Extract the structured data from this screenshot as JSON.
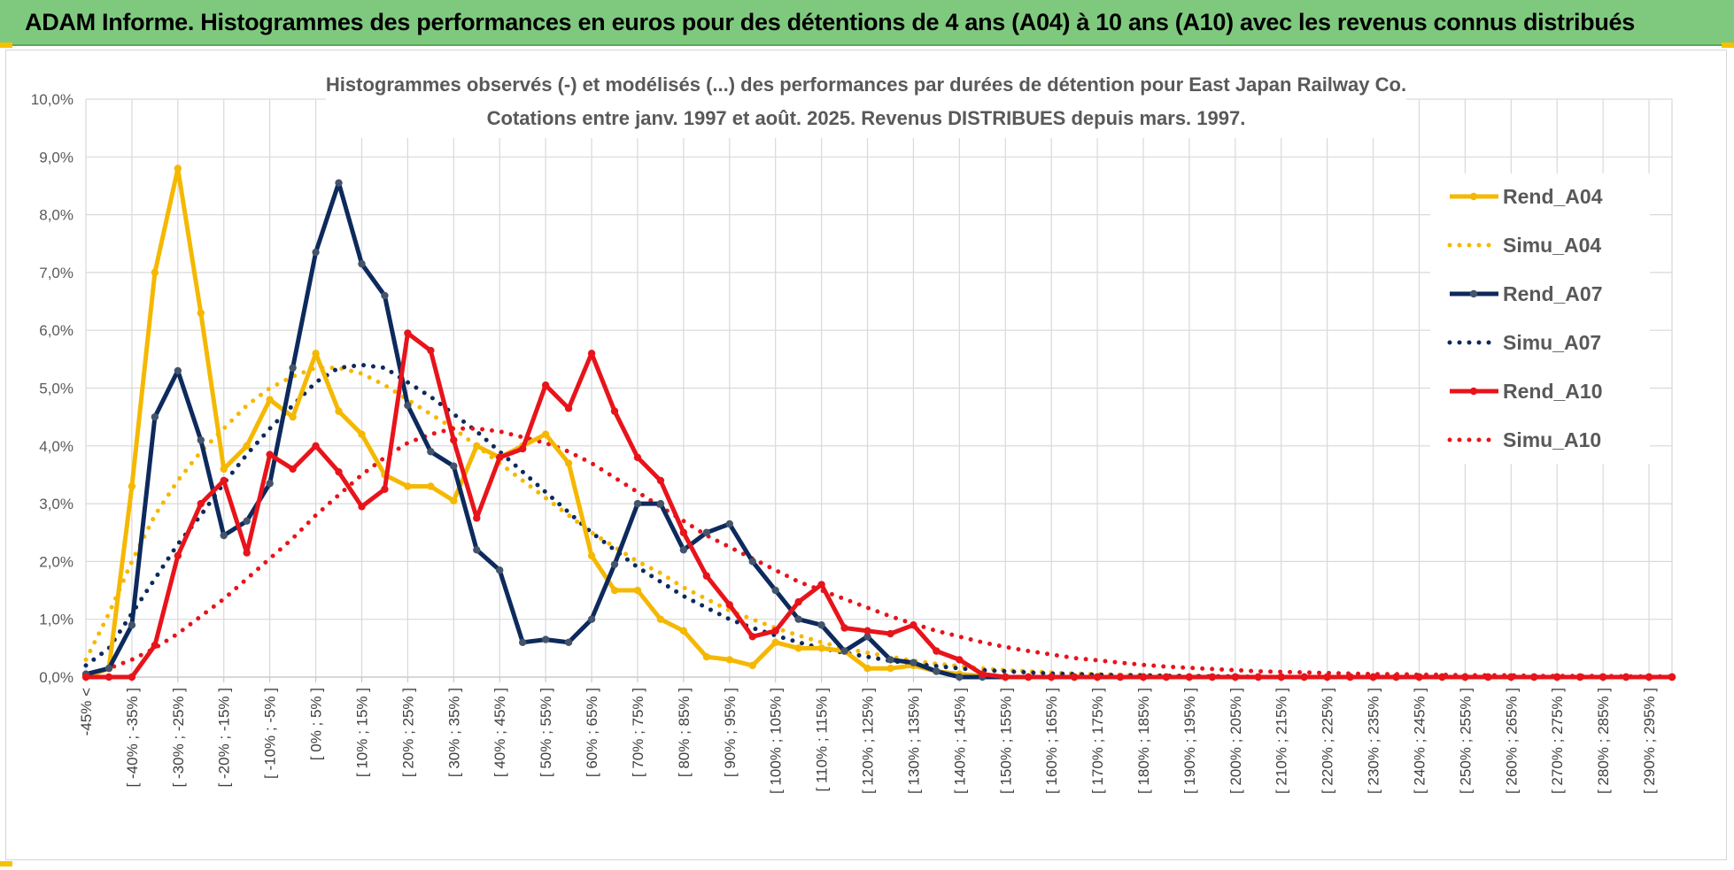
{
  "banner": {
    "title": "ADAM Informe. Histogrammes des performances en euros pour des détentions de 4 ans (A04) à 10 ans (A10) avec les revenus connus distribués"
  },
  "chart_data": {
    "type": "line",
    "title": "Histogrammes observés (-) et modélisés (...) des performances par durées de détention pour East Japan Railway Co.",
    "subtitle": "Cotations entre janv. 1997 et août. 2025. Revenus DISTRIBUES depuis mars. 1997.",
    "xlabel": "",
    "ylabel": "",
    "ylim": [
      0,
      10
    ],
    "grid": true,
    "legend_position": "right",
    "y_ticks": [
      "0,0%",
      "1,0%",
      "2,0%",
      "3,0%",
      "4,0%",
      "5,0%",
      "6,0%",
      "7,0%",
      "8,0%",
      "9,0%",
      "10,0%"
    ],
    "x_labels": [
      "-45% <",
      "[ -40% ; -35% ]",
      "[ -30% ; -25% ]",
      "[ -20% ; -15% ]",
      "[ -10% ; -5% ]",
      "[ 0% ; 5% ]",
      "[ 10% ; 15% ]",
      "[ 20% ; 25% ]",
      "[ 30% ; 35% ]",
      "[ 40% ; 45% ]",
      "[ 50% ; 55% ]",
      "[ 60% ; 65% ]",
      "[ 70% ; 75% ]",
      "[ 80% ; 85% ]",
      "[ 90% ; 95% ]",
      "[ 100% ; 105% ]",
      "[ 110% ; 115% ]",
      "[ 120% ; 125% ]",
      "[ 130% ; 135% ]",
      "[ 140% ; 145% ]",
      "[ 150% ; 155% ]",
      "[ 160% ; 165% ]",
      "[ 170% ; 175% ]",
      "[ 180% ; 185% ]",
      "[ 190% ; 195% ]",
      "[ 200% ; 205% ]",
      "[ 210% ; 215% ]",
      "[ 220% ; 225% ]",
      "[ 230% ; 235% ]",
      "[ 240% ; 245% ]",
      "[ 250% ; 255% ]",
      "[ 260% ; 265% ]",
      "[ 270% ; 275% ]",
      "[ 280% ; 285% ]",
      "[ 290% ; 295% ]"
    ],
    "series": [
      {
        "name": "Rend_A04",
        "style": "solid",
        "color": "#f5b800",
        "values": [
          0.0,
          0.15,
          3.3,
          7.0,
          8.8,
          6.3,
          3.6,
          4.0,
          4.8,
          4.5,
          5.6,
          4.6,
          4.2,
          3.5,
          3.3,
          3.3,
          3.05,
          4.0,
          3.8,
          4.0,
          4.2,
          3.7,
          2.1,
          1.5,
          1.5,
          1.0,
          0.8,
          0.35,
          0.3,
          0.2,
          0.6,
          0.5,
          0.5,
          0.45,
          0.15,
          0.15,
          0.2,
          0.1,
          0.05,
          0.02,
          0.0,
          0.0,
          0.0,
          0.0,
          0.0,
          0.0,
          0.0,
          0.0,
          0.0,
          0.0,
          0.0,
          0.0,
          0.0,
          0.0,
          0.0,
          0.0,
          0.0,
          0.0,
          0.0,
          0.0,
          0.0,
          0.0,
          0.0,
          0.0,
          0.0,
          0.0,
          0.0,
          0.0,
          0.0,
          0.0
        ]
      },
      {
        "name": "Simu_A04",
        "style": "dotted",
        "color": "#f5b800",
        "values": [
          0.3,
          1.1,
          2.0,
          2.8,
          3.4,
          3.9,
          4.3,
          4.7,
          5.0,
          5.2,
          5.35,
          5.35,
          5.25,
          5.05,
          4.8,
          4.55,
          4.3,
          4.0,
          3.7,
          3.4,
          3.1,
          2.8,
          2.5,
          2.25,
          2.0,
          1.8,
          1.55,
          1.35,
          1.15,
          1.0,
          0.85,
          0.72,
          0.6,
          0.5,
          0.42,
          0.35,
          0.28,
          0.23,
          0.19,
          0.15,
          0.12,
          0.1,
          0.08,
          0.06,
          0.05,
          0.04,
          0.03,
          0.02,
          0.02,
          0.01,
          0.01,
          0.0,
          0.0,
          0.0,
          0.0,
          0.0,
          0.0,
          0.0,
          0.0,
          0.0,
          0.0,
          0.0,
          0.0,
          0.0,
          0.0,
          0.0,
          0.0,
          0.0,
          0.0,
          0.0
        ]
      },
      {
        "name": "Rend_A07",
        "style": "solid",
        "color": "#0d2a5c",
        "values": [
          0.05,
          0.15,
          0.9,
          4.5,
          5.3,
          4.1,
          2.45,
          2.7,
          3.35,
          5.35,
          7.35,
          8.55,
          7.15,
          6.6,
          4.7,
          3.9,
          3.65,
          2.2,
          1.85,
          0.6,
          0.65,
          0.6,
          1.0,
          1.95,
          3.0,
          3.0,
          2.2,
          2.5,
          2.65,
          2.0,
          1.5,
          1.0,
          0.9,
          0.45,
          0.7,
          0.3,
          0.25,
          0.1,
          0.0,
          0.0,
          0.0,
          0.0,
          0.0,
          0.0,
          0.0,
          0.0,
          0.0,
          0.0,
          0.0,
          0.0,
          0.0,
          0.0,
          0.0,
          0.0,
          0.0,
          0.0,
          0.0,
          0.0,
          0.0,
          0.0,
          0.0,
          0.0,
          0.0,
          0.0,
          0.0,
          0.0,
          0.0,
          0.0,
          0.0,
          0.0
        ]
      },
      {
        "name": "Simu_A07",
        "style": "dotted",
        "color": "#0d2a5c",
        "values": [
          0.2,
          0.5,
          1.1,
          1.7,
          2.3,
          2.8,
          3.35,
          3.85,
          4.3,
          4.7,
          5.1,
          5.35,
          5.4,
          5.35,
          5.1,
          4.85,
          4.55,
          4.25,
          3.9,
          3.55,
          3.2,
          2.85,
          2.5,
          2.2,
          1.9,
          1.65,
          1.4,
          1.2,
          1.0,
          0.85,
          0.72,
          0.6,
          0.5,
          0.42,
          0.35,
          0.28,
          0.23,
          0.19,
          0.15,
          0.12,
          0.1,
          0.08,
          0.06,
          0.05,
          0.04,
          0.03,
          0.03,
          0.02,
          0.02,
          0.01,
          0.01,
          0.0,
          0.0,
          0.0,
          0.0,
          0.0,
          0.0,
          0.0,
          0.0,
          0.0,
          0.0,
          0.0,
          0.0,
          0.0,
          0.0,
          0.0,
          0.0,
          0.0,
          0.0,
          0.0
        ]
      },
      {
        "name": "Rend_A10",
        "style": "solid",
        "color": "#e8141b",
        "values": [
          0.0,
          0.0,
          0.0,
          0.55,
          2.1,
          3.0,
          3.4,
          2.15,
          3.85,
          3.6,
          4.0,
          3.55,
          2.95,
          3.25,
          5.95,
          5.65,
          4.1,
          2.75,
          3.8,
          3.95,
          5.05,
          4.65,
          5.6,
          4.6,
          3.8,
          3.4,
          2.5,
          1.75,
          1.25,
          0.7,
          0.8,
          1.3,
          1.6,
          0.85,
          0.8,
          0.75,
          0.9,
          0.45,
          0.3,
          0.05,
          0.0,
          0.0,
          0.0,
          0.0,
          0.0,
          0.0,
          0.0,
          0.0,
          0.0,
          0.0,
          0.0,
          0.0,
          0.0,
          0.0,
          0.0,
          0.0,
          0.0,
          0.0,
          0.0,
          0.0,
          0.0,
          0.0,
          0.0,
          0.0,
          0.0,
          0.0,
          0.0,
          0.0,
          0.0,
          0.0
        ]
      },
      {
        "name": "Simu_A10",
        "style": "dotted",
        "color": "#e8141b",
        "values": [
          0.05,
          0.15,
          0.3,
          0.5,
          0.75,
          1.05,
          1.35,
          1.7,
          2.05,
          2.4,
          2.8,
          3.15,
          3.5,
          3.8,
          4.05,
          4.2,
          4.3,
          4.3,
          4.25,
          4.15,
          4.05,
          3.9,
          3.7,
          3.45,
          3.2,
          2.95,
          2.7,
          2.45,
          2.25,
          2.05,
          1.85,
          1.65,
          1.5,
          1.35,
          1.2,
          1.05,
          0.92,
          0.8,
          0.7,
          0.6,
          0.52,
          0.45,
          0.39,
          0.33,
          0.29,
          0.25,
          0.21,
          0.18,
          0.16,
          0.14,
          0.12,
          0.1,
          0.09,
          0.08,
          0.07,
          0.06,
          0.05,
          0.05,
          0.04,
          0.04,
          0.03,
          0.03,
          0.03,
          0.02,
          0.02,
          0.02,
          0.02,
          0.01,
          0.01,
          0.01
        ]
      }
    ]
  }
}
